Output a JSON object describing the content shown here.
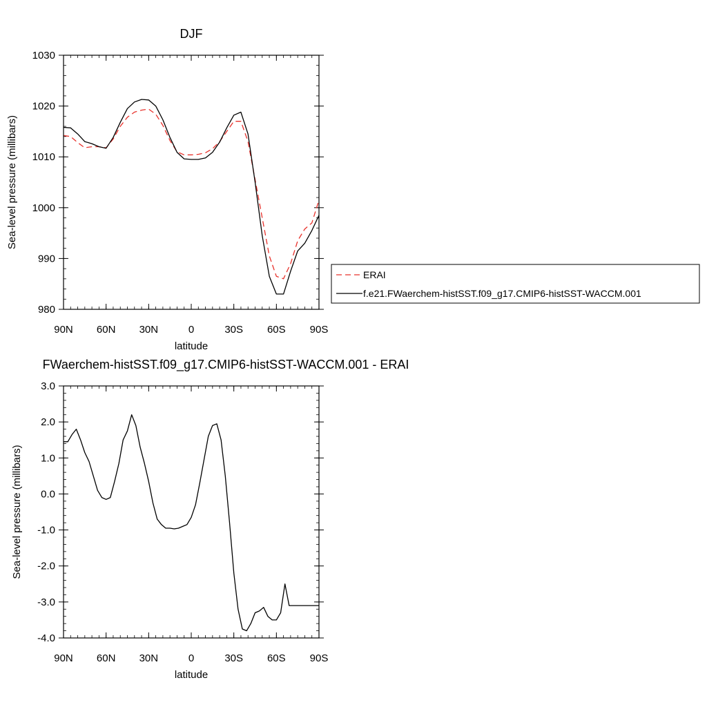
{
  "chart_data": [
    {
      "type": "line",
      "title": "DJF",
      "xlabel": "latitude",
      "ylabel": "Sea-level pressure (millibars)",
      "xlim": [
        90,
        -90
      ],
      "ylim": [
        980,
        1030
      ],
      "x_tick_values": [
        90,
        60,
        30,
        0,
        -30,
        -60,
        -90
      ],
      "x_tick_labels": [
        "90N",
        "60N",
        "30N",
        "0",
        "30S",
        "60S",
        "90S"
      ],
      "y_tick_values": [
        980,
        990,
        1000,
        1010,
        1020,
        1030
      ],
      "y_tick_labels": [
        "980",
        "990",
        "1000",
        "1010",
        "1020",
        "1030"
      ],
      "legend_position": "right",
      "x": [
        90,
        85,
        80,
        75,
        70,
        65,
        60,
        55,
        50,
        45,
        40,
        35,
        30,
        25,
        20,
        15,
        10,
        5,
        0,
        -5,
        -10,
        -15,
        -20,
        -25,
        -30,
        -35,
        -40,
        -45,
        -50,
        -55,
        -60,
        -65,
        -70,
        -75,
        -80,
        -85,
        -90
      ],
      "series": [
        {
          "name": "ERAI",
          "color": "#e8302a",
          "dash": "dashed",
          "values": [
            1014.2,
            1014.0,
            1012.8,
            1011.8,
            1012.0,
            1012.0,
            1011.8,
            1013.5,
            1016.0,
            1017.8,
            1018.8,
            1019.2,
            1019.4,
            1018.4,
            1016.2,
            1013.2,
            1011.0,
            1010.4,
            1010.4,
            1010.5,
            1010.8,
            1011.6,
            1013.0,
            1015.0,
            1017.0,
            1017.0,
            1013.0,
            1005.5,
            998.0,
            990.5,
            986.5,
            986.0,
            989.0,
            993.5,
            995.8,
            997.0,
            1001.5
          ]
        },
        {
          "name": "f.e21.FWaerchem-histSST.f09_g17.CMIP6-histSST-WACCM.001",
          "color": "#000000",
          "dash": "solid",
          "values": [
            1015.8,
            1015.7,
            1014.5,
            1013.0,
            1012.6,
            1012.0,
            1011.7,
            1013.8,
            1016.8,
            1019.5,
            1020.8,
            1021.3,
            1021.2,
            1020.0,
            1017.3,
            1013.8,
            1010.9,
            1009.6,
            1009.5,
            1009.5,
            1009.8,
            1010.9,
            1012.9,
            1015.7,
            1018.2,
            1018.8,
            1014.5,
            1005.0,
            994.5,
            986.5,
            983.0,
            983.0,
            987.5,
            991.5,
            993.0,
            995.5,
            998.5
          ]
        }
      ]
    },
    {
      "type": "line",
      "title": "FWaerchem-histSST.f09_g17.CMIP6-histSST-WACCM.001 - ERAI",
      "xlabel": "latitude",
      "ylabel": "Sea-level pressure (millibars)",
      "xlim": [
        90,
        -90
      ],
      "ylim": [
        -4.0,
        3.0
      ],
      "x_tick_values": [
        90,
        60,
        30,
        0,
        -30,
        -60,
        -90
      ],
      "x_tick_labels": [
        "90N",
        "60N",
        "30N",
        "0",
        "30S",
        "60S",
        "90S"
      ],
      "y_tick_values": [
        3.0,
        2.0,
        1.0,
        0.0,
        -1.0,
        -2.0,
        -3.0,
        -4.0
      ],
      "y_tick_labels": [
        "3.0",
        "2.0",
        "1.0",
        "0.0",
        "-1.0",
        "-2.0",
        "-3.0",
        "-4.0"
      ],
      "x": [
        90,
        87,
        84,
        81,
        78,
        75,
        72,
        69,
        66,
        63,
        60,
        57,
        54,
        51,
        48,
        45,
        42,
        39,
        36,
        33,
        30,
        27,
        24,
        21,
        18,
        15,
        12,
        9,
        6,
        3,
        0,
        -3,
        -6,
        -9,
        -12,
        -15,
        -18,
        -21,
        -24,
        -27,
        -30,
        -33,
        -36,
        -39,
        -42,
        -45,
        -48,
        -51,
        -54,
        -57,
        -60,
        -63,
        -66,
        -69,
        -72,
        -75,
        -78,
        -81,
        -84,
        -87,
        -90
      ],
      "series": [
        {
          "name": "",
          "color": "#000000",
          "dash": "solid",
          "values": [
            1.45,
            1.45,
            1.65,
            1.8,
            1.5,
            1.15,
            0.9,
            0.5,
            0.1,
            -0.1,
            -0.15,
            -0.1,
            0.35,
            0.85,
            1.5,
            1.75,
            2.2,
            1.9,
            1.3,
            0.85,
            0.35,
            -0.25,
            -0.7,
            -0.85,
            -0.95,
            -0.95,
            -0.97,
            -0.95,
            -0.9,
            -0.85,
            -0.65,
            -0.3,
            0.3,
            0.95,
            1.6,
            1.9,
            1.95,
            1.5,
            0.5,
            -0.8,
            -2.2,
            -3.2,
            -3.75,
            -3.8,
            -3.6,
            -3.3,
            -3.25,
            -3.15,
            -3.4,
            -3.5,
            -3.5,
            -3.3,
            -2.5,
            -3.1,
            -3.1,
            -3.1,
            -3.1,
            -3.1,
            -3.1,
            -3.1,
            -3.1
          ]
        }
      ]
    }
  ]
}
